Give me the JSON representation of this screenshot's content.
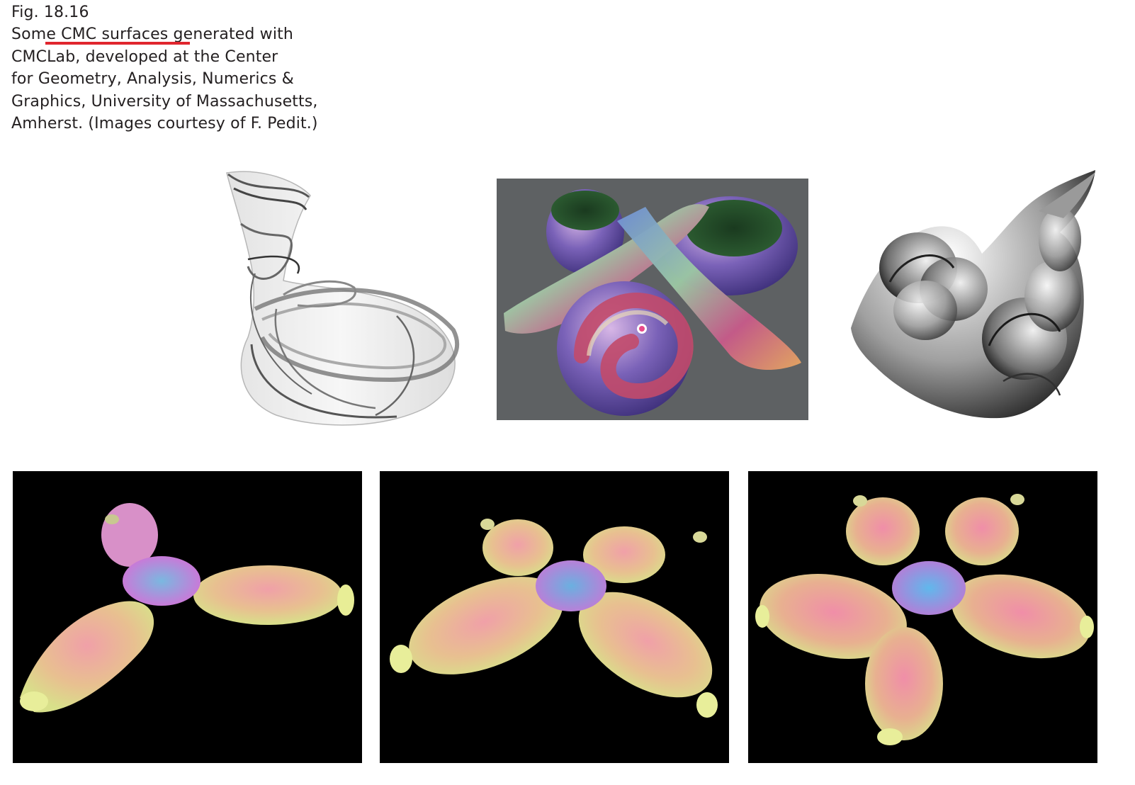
{
  "caption": {
    "label": "Fig. 18.16",
    "line1_pre": "Som",
    "line1_highlight": "e CMC surfaces g",
    "line1_post": "enerated with",
    "line2": "CMCLab, developed at the Center",
    "line3": "for Geometry, Analysis, Numerics &",
    "line4": "Graphics, University of Massachusetts,",
    "line5": "Amherst. (Images courtesy of F. Pedit.)"
  },
  "colors": {
    "highlight_underline": "#e0262e",
    "panel_dark": "#000000",
    "panel_gray": "#5e6163",
    "text": "#231f20"
  },
  "figures": [
    {
      "name": "ribbon-vase-surface",
      "render": "transparent grayscale ribbons"
    },
    {
      "name": "twisted-tube-surface",
      "render": "colored shaded on gray"
    },
    {
      "name": "swirled-shell-surface",
      "render": "grayscale shaded"
    },
    {
      "name": "three-ended-bubble-surface",
      "render": "pastel on black",
      "ends": 3
    },
    {
      "name": "four-ended-bubble-surface",
      "render": "pastel on black",
      "ends": 4
    },
    {
      "name": "five-ended-bubble-surface",
      "render": "pastel on black",
      "ends": 5
    }
  ]
}
